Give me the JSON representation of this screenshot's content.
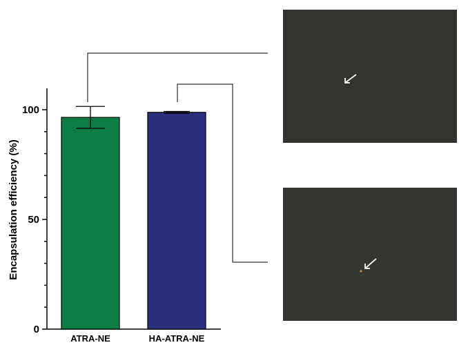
{
  "chart_data": {
    "type": "bar",
    "title": "",
    "xlabel": "",
    "ylabel": "Encapsulation efficiency (%)",
    "ylim": [
      0,
      110
    ],
    "yticks": [
      0,
      50,
      100
    ],
    "categories": [
      "ATRA-NE",
      "HA-ATRA-NE"
    ],
    "values": [
      96.5,
      98.8
    ],
    "errors": [
      5.0,
      0.4
    ],
    "colors": [
      "#0c7d45",
      "#2b2f7d"
    ],
    "grid": false,
    "legend": "none"
  },
  "micrographs": [
    {
      "description_icon": "arrow-pointer-icon",
      "background": "#2f332c",
      "linked_category": "ATRA-NE"
    },
    {
      "description_icon": "arrow-pointer-icon",
      "background": "#333530",
      "linked_category": "HA-ATRA-NE"
    }
  ]
}
